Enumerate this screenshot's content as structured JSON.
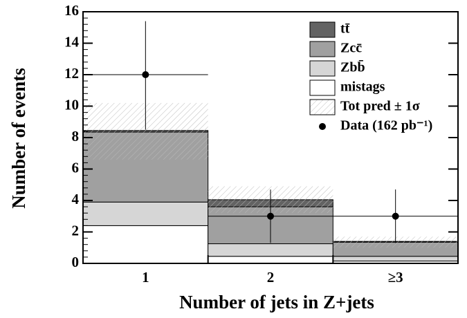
{
  "chart_data": {
    "type": "stacked-histogram",
    "xlabel": "Number of jets in Z+jets",
    "ylabel": "Number of events",
    "categories": [
      "1",
      "2",
      "≥3"
    ],
    "ylim": [
      0,
      16
    ],
    "yticks": [
      0,
      2,
      4,
      6,
      8,
      10,
      12,
      14,
      16
    ],
    "series": [
      {
        "name": "mistags",
        "color": "#ffffff",
        "values": [
          2.4,
          0.45,
          0.15
        ]
      },
      {
        "name": "Zbb̄",
        "color": "#d6d6d6",
        "values": [
          1.5,
          0.8,
          0.3
        ]
      },
      {
        "name": "Zcc̄",
        "color": "#a0a0a0",
        "values": [
          4.45,
          2.35,
          0.9
        ]
      },
      {
        "name": "tt̄",
        "color": "#636363",
        "values": [
          0.1,
          0.45,
          0.05
        ]
      }
    ],
    "band": {
      "name": "Tot pred ± 1σ",
      "low": [
        6.6,
        3.2,
        1.0
      ],
      "high": [
        10.2,
        4.9,
        1.7
      ]
    },
    "data": {
      "name": "Data (162 pb⁻¹)",
      "values": [
        12,
        3,
        3
      ],
      "errors_low": [
        3.5,
        1.7,
        1.7
      ],
      "errors_high": [
        3.4,
        1.7,
        1.7
      ]
    }
  }
}
